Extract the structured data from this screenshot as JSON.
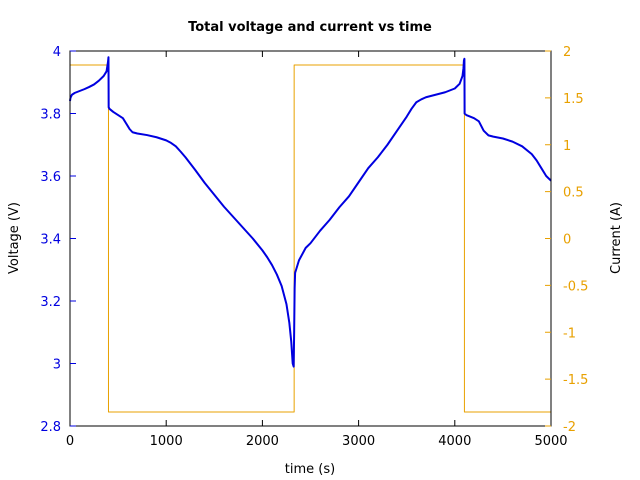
{
  "chart_data": {
    "type": "line",
    "title": "Total voltage and current vs time",
    "xlabel": "time (s)",
    "ylabel": "Voltage (V)",
    "y2label": "Current (A)",
    "xlim": [
      0,
      5000
    ],
    "ylim": [
      2.8,
      4.0
    ],
    "y2lim": [
      -2,
      2
    ],
    "grid": false,
    "legend": "none",
    "x_ticks": [
      {
        "value": 0,
        "label": "0"
      },
      {
        "value": 1000,
        "label": "1000"
      },
      {
        "value": 2000,
        "label": "2000"
      },
      {
        "value": 3000,
        "label": "3000"
      },
      {
        "value": 4000,
        "label": "4000"
      },
      {
        "value": 5000,
        "label": "5000"
      }
    ],
    "y_ticks": [
      {
        "value": 2.8,
        "label": "2.8"
      },
      {
        "value": 3.0,
        "label": "3"
      },
      {
        "value": 3.2,
        "label": "3.2"
      },
      {
        "value": 3.4,
        "label": "3.4"
      },
      {
        "value": 3.6,
        "label": "3.6"
      },
      {
        "value": 3.8,
        "label": "3.8"
      },
      {
        "value": 4.0,
        "label": "4"
      }
    ],
    "y2_ticks": [
      {
        "value": -2,
        "label": "-2"
      },
      {
        "value": -1.5,
        "label": "-1.5"
      },
      {
        "value": -1,
        "label": "-1"
      },
      {
        "value": -0.5,
        "label": "-0.5"
      },
      {
        "value": 0,
        "label": "0"
      },
      {
        "value": 0.5,
        "label": "0.5"
      },
      {
        "value": 1,
        "label": "1"
      },
      {
        "value": 1.5,
        "label": "1.5"
      },
      {
        "value": 2,
        "label": "2"
      }
    ],
    "colors": {
      "voltage": "#0000e0",
      "current": "#e8a000",
      "axis": "#000000"
    },
    "series": [
      {
        "axis": "left",
        "color": "#0000e0",
        "points": [
          [
            0,
            3.84
          ],
          [
            5,
            3.85
          ],
          [
            20,
            3.86
          ],
          [
            50,
            3.866
          ],
          [
            100,
            3.872
          ],
          [
            150,
            3.878
          ],
          [
            200,
            3.885
          ],
          [
            250,
            3.893
          ],
          [
            300,
            3.905
          ],
          [
            350,
            3.92
          ],
          [
            380,
            3.935
          ],
          [
            395,
            3.965
          ],
          [
            400,
            3.98
          ],
          [
            402,
            3.82
          ],
          [
            410,
            3.815
          ],
          [
            450,
            3.805
          ],
          [
            500,
            3.795
          ],
          [
            550,
            3.785
          ],
          [
            580,
            3.77
          ],
          [
            620,
            3.75
          ],
          [
            650,
            3.74
          ],
          [
            700,
            3.736
          ],
          [
            800,
            3.731
          ],
          [
            900,
            3.724
          ],
          [
            1000,
            3.714
          ],
          [
            1050,
            3.706
          ],
          [
            1100,
            3.695
          ],
          [
            1150,
            3.678
          ],
          [
            1200,
            3.66
          ],
          [
            1300,
            3.62
          ],
          [
            1400,
            3.578
          ],
          [
            1500,
            3.54
          ],
          [
            1600,
            3.502
          ],
          [
            1700,
            3.468
          ],
          [
            1800,
            3.434
          ],
          [
            1900,
            3.4
          ],
          [
            2000,
            3.362
          ],
          [
            2050,
            3.34
          ],
          [
            2100,
            3.315
          ],
          [
            2150,
            3.285
          ],
          [
            2200,
            3.248
          ],
          [
            2250,
            3.19
          ],
          [
            2280,
            3.13
          ],
          [
            2300,
            3.07
          ],
          [
            2315,
            3.0
          ],
          [
            2325,
            2.99
          ],
          [
            2330,
            3.1
          ],
          [
            2335,
            3.24
          ],
          [
            2340,
            3.29
          ],
          [
            2380,
            3.33
          ],
          [
            2450,
            3.37
          ],
          [
            2500,
            3.385
          ],
          [
            2550,
            3.405
          ],
          [
            2600,
            3.425
          ],
          [
            2700,
            3.46
          ],
          [
            2800,
            3.5
          ],
          [
            2900,
            3.535
          ],
          [
            3000,
            3.58
          ],
          [
            3100,
            3.625
          ],
          [
            3200,
            3.66
          ],
          [
            3300,
            3.7
          ],
          [
            3400,
            3.745
          ],
          [
            3500,
            3.79
          ],
          [
            3550,
            3.815
          ],
          [
            3600,
            3.836
          ],
          [
            3650,
            3.845
          ],
          [
            3700,
            3.852
          ],
          [
            3800,
            3.86
          ],
          [
            3900,
            3.868
          ],
          [
            4000,
            3.88
          ],
          [
            4050,
            3.895
          ],
          [
            4080,
            3.92
          ],
          [
            4090,
            3.945
          ],
          [
            4095,
            3.97
          ],
          [
            4100,
            3.975
          ],
          [
            4102,
            3.8
          ],
          [
            4120,
            3.795
          ],
          [
            4200,
            3.785
          ],
          [
            4250,
            3.775
          ],
          [
            4300,
            3.745
          ],
          [
            4350,
            3.73
          ],
          [
            4400,
            3.726
          ],
          [
            4500,
            3.72
          ],
          [
            4600,
            3.71
          ],
          [
            4700,
            3.695
          ],
          [
            4800,
            3.67
          ],
          [
            4850,
            3.65
          ],
          [
            4900,
            3.625
          ],
          [
            4950,
            3.6
          ],
          [
            5000,
            3.585
          ]
        ]
      },
      {
        "axis": "right",
        "color": "#e8a000",
        "points": [
          [
            0,
            1.85
          ],
          [
            400,
            1.85
          ],
          [
            400,
            -1.85
          ],
          [
            2330,
            -1.85
          ],
          [
            2330,
            1.85
          ],
          [
            4100,
            1.85
          ],
          [
            4100,
            -1.85
          ],
          [
            5000,
            -1.85
          ]
        ]
      }
    ]
  }
}
